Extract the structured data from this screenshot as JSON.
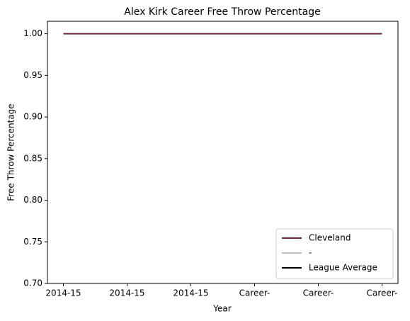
{
  "chart_data": {
    "type": "line",
    "title": "Alex Kirk Career Free Throw Percentage",
    "xlabel": "Year",
    "ylabel": "Free Throw Percentage",
    "categories": [
      "2014-15",
      "2014-15",
      "2014-15",
      "Career-",
      "Career-",
      "Career-"
    ],
    "series": [
      {
        "name": "Cleveland",
        "color": "#6f263d",
        "values": [
          1.0,
          1.0,
          1.0,
          1.0,
          1.0,
          1.0
        ]
      },
      {
        "name": "-",
        "color": "#c0c0c0",
        "values": [
          null,
          null,
          null,
          null,
          null,
          null
        ]
      },
      {
        "name": "League Average",
        "color": "#000000",
        "values": [
          null,
          null,
          null,
          null,
          null,
          null
        ]
      }
    ],
    "ylim": [
      0.7,
      1.015
    ],
    "yticks": [
      {
        "value": 0.7,
        "label": "0.70"
      },
      {
        "value": 0.75,
        "label": "0.75"
      },
      {
        "value": 0.8,
        "label": "0.80"
      },
      {
        "value": 0.85,
        "label": "0.85"
      },
      {
        "value": 0.9,
        "label": "0.90"
      },
      {
        "value": 0.95,
        "label": "0.95"
      },
      {
        "value": 1.0,
        "label": "1.00"
      }
    ],
    "legend": "lower right"
  }
}
